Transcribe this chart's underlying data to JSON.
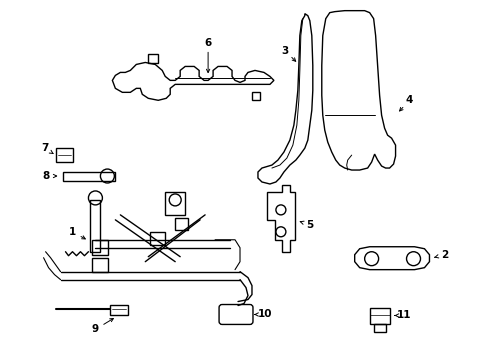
{
  "background_color": "#ffffff",
  "line_color": "#000000",
  "line_width": 1.0,
  "figsize": [
    4.89,
    3.6
  ],
  "dpi": 100
}
